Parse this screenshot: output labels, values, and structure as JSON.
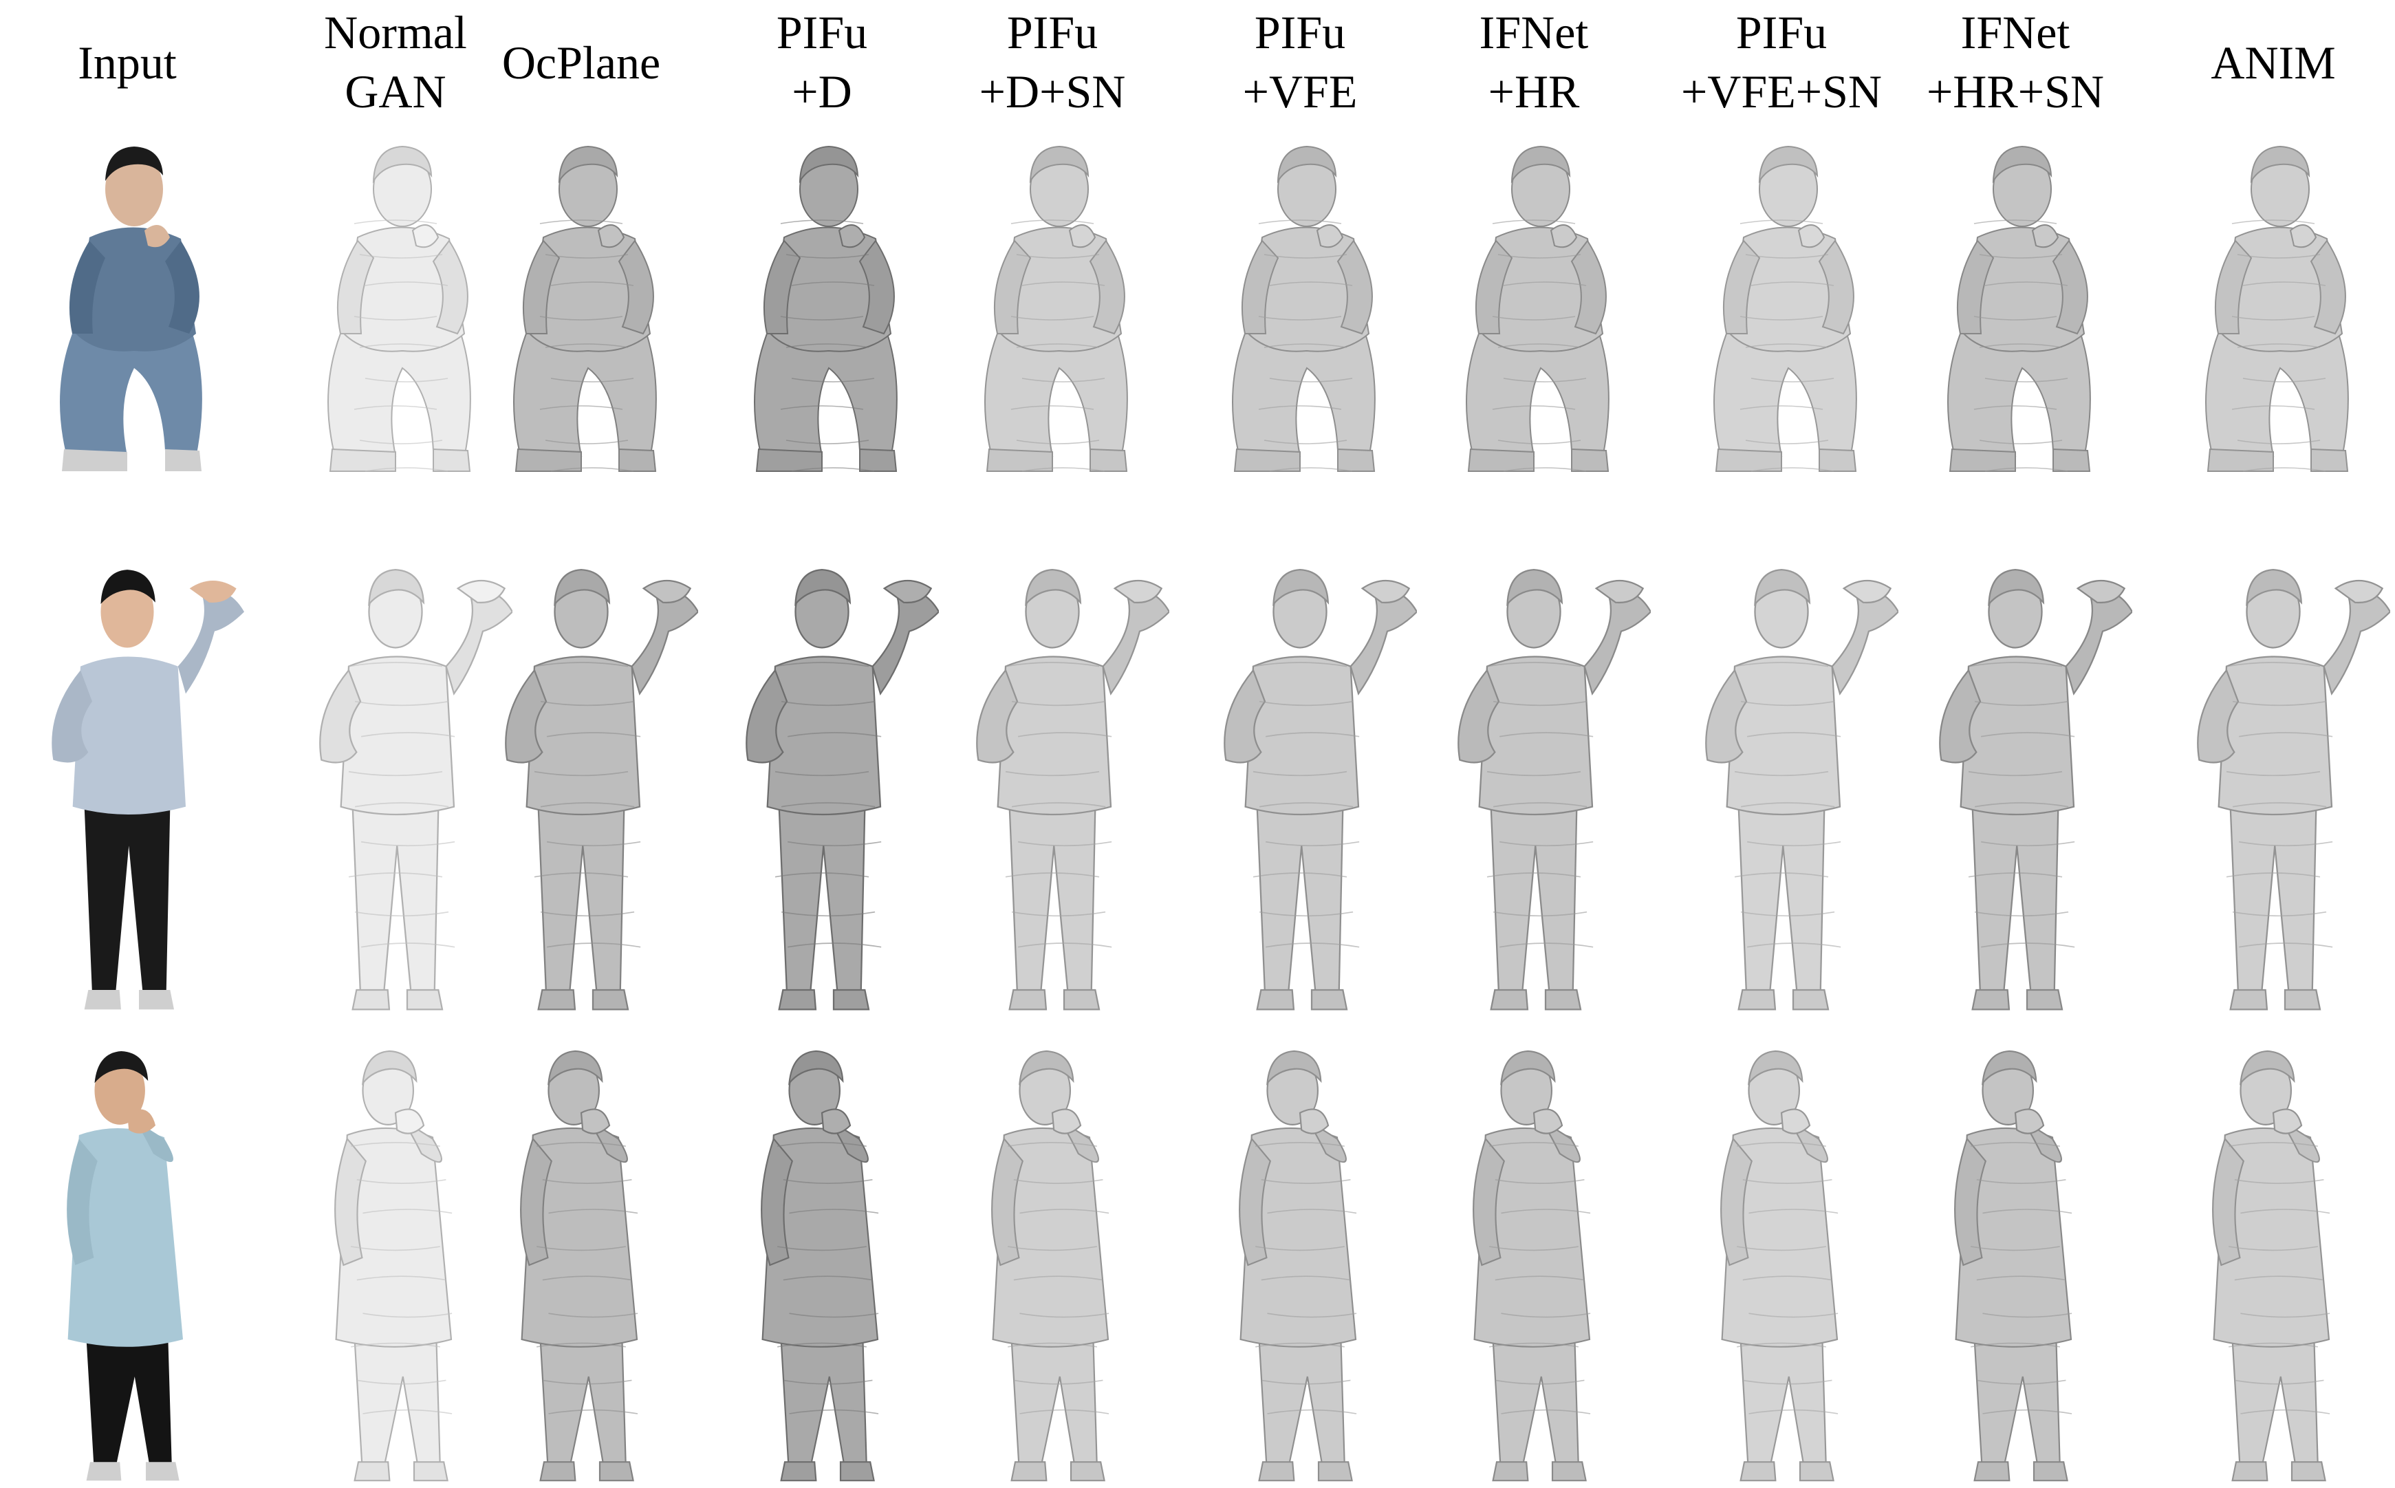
{
  "figure": {
    "columns": [
      {
        "id": "input",
        "lines": [
          "Input"
        ]
      },
      {
        "id": "normal-gan",
        "lines": [
          "Normal",
          "GAN"
        ]
      },
      {
        "id": "ocplane",
        "lines": [
          "OcPlane"
        ]
      },
      {
        "id": "pifu-d",
        "lines": [
          "PIFu",
          "+D"
        ]
      },
      {
        "id": "pifu-d-sn",
        "lines": [
          "PIFu",
          "+D+SN"
        ]
      },
      {
        "id": "pifu-vfe",
        "lines": [
          "PIFu",
          "+VFE"
        ]
      },
      {
        "id": "ifnet-hr",
        "lines": [
          "IFNet",
          "+HR"
        ]
      },
      {
        "id": "pifu-vfe-sn",
        "lines": [
          "PIFu",
          "+VFE+SN"
        ]
      },
      {
        "id": "ifnet-hr-sn",
        "lines": [
          "IFNet",
          "+HR+SN"
        ]
      },
      {
        "id": "anim",
        "lines": [
          "ANIM"
        ]
      }
    ],
    "rows": [
      {
        "id": "subject-1",
        "pose": "crouching",
        "input_colors": {
          "jacket": "#5f7a97",
          "pants": "#6e8aa8",
          "skin": "#d9b59b",
          "hair": "#1b1b1b",
          "hood": "#e8e4e0"
        }
      },
      {
        "id": "subject-2",
        "pose": "standing-arm-raised",
        "input_colors": {
          "jacket": "#b9c6d6",
          "pants": "#1a1a1a",
          "skin": "#e0b79a",
          "hair": "#161616",
          "hood": "#111111"
        }
      },
      {
        "id": "subject-3",
        "pose": "standing-hand-on-chin",
        "input_colors": {
          "jacket": "#a9c8d6",
          "pants": "#141414",
          "skin": "#d8ac8c",
          "hair": "#1a1a1a",
          "hood": "#9dbccb"
        }
      }
    ],
    "mesh_colors": {
      "normal-gan": "#ececec",
      "ocplane": "#bdbdbd",
      "pifu-d": "#a9a9a9",
      "pifu-d-sn": "#d0d0d0",
      "pifu-vfe": "#cbcbcb",
      "ifnet-hr": "#c6c6c6",
      "pifu-vfe-sn": "#d4d4d4",
      "ifnet-hr-sn": "#c4c4c4",
      "anim": "#cfcfcf"
    }
  }
}
